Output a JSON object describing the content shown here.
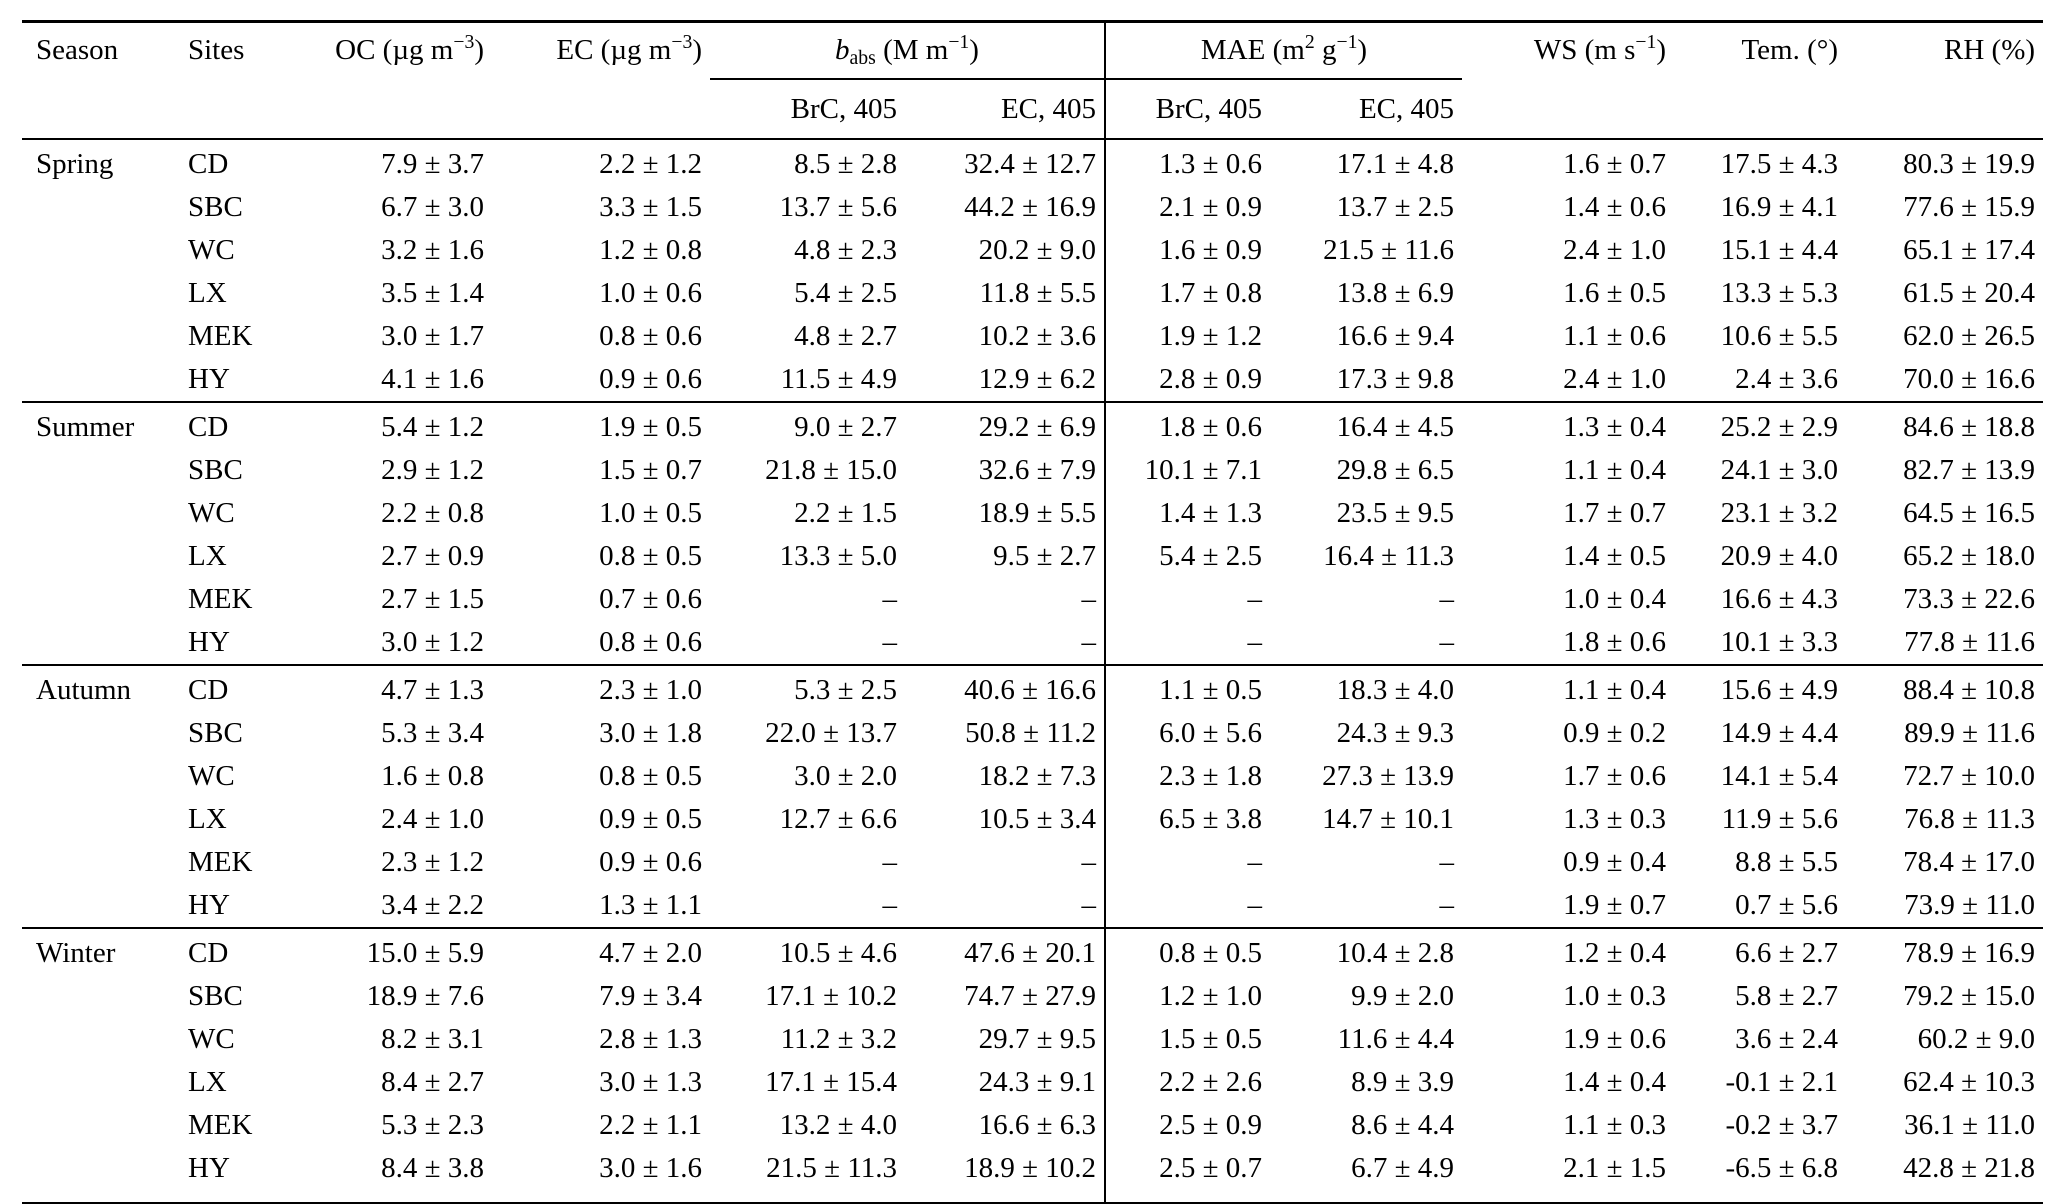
{
  "table": {
    "header": {
      "season": "Season",
      "sites": "Sites",
      "oc": "OC (µg m^−3^)",
      "ec": "EC (µg m^−3^)",
      "babs": "*b*~abs~ (M m^−1^)",
      "mae": "MAE (m^2^ g^−1^)",
      "ws": "WS (m s^−1^)",
      "tem": "Tem. (°)",
      "rh": "RH (%)",
      "babs_sub_brc": "BrC, 405",
      "babs_sub_ec": "EC, 405",
      "mae_sub_brc": "BrC, 405",
      "mae_sub_ec": "EC, 405"
    },
    "groups": [
      {
        "season": "Spring",
        "rows": [
          {
            "site": "CD",
            "values": [
              "7.9 ± 3.7",
              "2.2 ± 1.2",
              "8.5 ± 2.8",
              "32.4 ± 12.7",
              "1.3 ± 0.6",
              "17.1 ± 4.8",
              "1.6 ± 0.7",
              "17.5 ± 4.3",
              "80.3 ± 19.9"
            ]
          },
          {
            "site": "SBC",
            "values": [
              "6.7 ± 3.0",
              "3.3 ± 1.5",
              "13.7 ± 5.6",
              "44.2 ± 16.9",
              "2.1 ± 0.9",
              "13.7 ± 2.5",
              "1.4 ± 0.6",
              "16.9 ± 4.1",
              "77.6 ± 15.9"
            ]
          },
          {
            "site": "WC",
            "values": [
              "3.2 ± 1.6",
              "1.2 ± 0.8",
              "4.8 ± 2.3",
              "20.2 ± 9.0",
              "1.6 ± 0.9",
              "21.5 ± 11.6",
              "2.4 ± 1.0",
              "15.1 ± 4.4",
              "65.1 ± 17.4"
            ]
          },
          {
            "site": "LX",
            "values": [
              "3.5 ± 1.4",
              "1.0 ± 0.6",
              "5.4 ± 2.5",
              "11.8 ± 5.5",
              "1.7 ± 0.8",
              "13.8 ± 6.9",
              "1.6 ± 0.5",
              "13.3 ± 5.3",
              "61.5 ± 20.4"
            ]
          },
          {
            "site": "MEK",
            "values": [
              "3.0 ± 1.7",
              "0.8 ± 0.6",
              "4.8 ± 2.7",
              "10.2 ± 3.6",
              "1.9 ± 1.2",
              "16.6 ± 9.4",
              "1.1 ± 0.6",
              "10.6 ± 5.5",
              "62.0 ± 26.5"
            ]
          },
          {
            "site": "HY",
            "values": [
              "4.1 ± 1.6",
              "0.9 ± 0.6",
              "11.5 ± 4.9",
              "12.9 ± 6.2",
              "2.8 ± 0.9",
              "17.3 ± 9.8",
              "2.4 ± 1.0",
              "2.4 ± 3.6",
              "70.0 ± 16.6"
            ]
          }
        ]
      },
      {
        "season": "Summer",
        "rows": [
          {
            "site": "CD",
            "values": [
              "5.4 ± 1.2",
              "1.9 ± 0.5",
              "9.0 ± 2.7",
              "29.2 ± 6.9",
              "1.8 ± 0.6",
              "16.4 ± 4.5",
              "1.3 ± 0.4",
              "25.2 ± 2.9",
              "84.6 ± 18.8"
            ]
          },
          {
            "site": "SBC",
            "values": [
              "2.9 ± 1.2",
              "1.5 ± 0.7",
              "21.8 ± 15.0",
              "32.6 ± 7.9",
              "10.1 ± 7.1",
              "29.8 ± 6.5",
              "1.1 ± 0.4",
              "24.1 ± 3.0",
              "82.7 ± 13.9"
            ]
          },
          {
            "site": "WC",
            "values": [
              "2.2 ± 0.8",
              "1.0 ± 0.5",
              "2.2 ± 1.5",
              "18.9 ± 5.5",
              "1.4 ± 1.3",
              "23.5 ± 9.5",
              "1.7 ± 0.7",
              "23.1 ± 3.2",
              "64.5 ± 16.5"
            ]
          },
          {
            "site": "LX",
            "values": [
              "2.7 ± 0.9",
              "0.8 ± 0.5",
              "13.3 ± 5.0",
              "9.5 ± 2.7",
              "5.4 ± 2.5",
              "16.4 ± 11.3",
              "1.4 ± 0.5",
              "20.9 ± 4.0",
              "65.2 ± 18.0"
            ]
          },
          {
            "site": "MEK",
            "values": [
              "2.7 ± 1.5",
              "0.7 ± 0.6",
              "–",
              "–",
              "–",
              "–",
              "1.0 ± 0.4",
              "16.6 ± 4.3",
              "73.3 ± 22.6"
            ]
          },
          {
            "site": "HY",
            "values": [
              "3.0 ± 1.2",
              "0.8 ± 0.6",
              "–",
              "–",
              "–",
              "–",
              "1.8 ± 0.6",
              "10.1 ± 3.3",
              "77.8 ± 11.6"
            ]
          }
        ]
      },
      {
        "season": "Autumn",
        "rows": [
          {
            "site": "CD",
            "values": [
              "4.7 ± 1.3",
              "2.3 ± 1.0",
              "5.3 ± 2.5",
              "40.6 ± 16.6",
              "1.1 ± 0.5",
              "18.3 ± 4.0",
              "1.1 ± 0.4",
              "15.6 ± 4.9",
              "88.4 ± 10.8"
            ]
          },
          {
            "site": "SBC",
            "values": [
              "5.3 ± 3.4",
              "3.0 ± 1.8",
              "22.0 ± 13.7",
              "50.8 ± 11.2",
              "6.0 ± 5.6",
              "24.3 ± 9.3",
              "0.9 ± 0.2",
              "14.9 ± 4.4",
              "89.9 ± 11.6"
            ]
          },
          {
            "site": "WC",
            "values": [
              "1.6 ± 0.8",
              "0.8 ± 0.5",
              "3.0 ± 2.0",
              "18.2 ± 7.3",
              "2.3 ± 1.8",
              "27.3 ± 13.9",
              "1.7 ± 0.6",
              "14.1 ± 5.4",
              "72.7 ± 10.0"
            ]
          },
          {
            "site": "LX",
            "values": [
              "2.4 ± 1.0",
              "0.9 ± 0.5",
              "12.7 ± 6.6",
              "10.5 ± 3.4",
              "6.5 ± 3.8",
              "14.7 ± 10.1",
              "1.3 ± 0.3",
              "11.9 ± 5.6",
              "76.8 ± 11.3"
            ]
          },
          {
            "site": "MEK",
            "values": [
              "2.3 ± 1.2",
              "0.9 ± 0.6",
              "–",
              "–",
              "–",
              "–",
              "0.9 ± 0.4",
              "8.8 ± 5.5",
              "78.4 ± 17.0"
            ]
          },
          {
            "site": "HY",
            "values": [
              "3.4 ± 2.2",
              "1.3 ± 1.1",
              "–",
              "–",
              "–",
              "–",
              "1.9 ± 0.7",
              "0.7 ± 5.6",
              "73.9 ± 11.0"
            ]
          }
        ]
      },
      {
        "season": "Winter",
        "rows": [
          {
            "site": "CD",
            "values": [
              "15.0 ± 5.9",
              "4.7 ± 2.0",
              "10.5 ± 4.6",
              "47.6 ± 20.1",
              "0.8 ± 0.5",
              "10.4 ± 2.8",
              "1.2 ± 0.4",
              "6.6 ± 2.7",
              "78.9 ± 16.9"
            ]
          },
          {
            "site": "SBC",
            "values": [
              "18.9 ± 7.6",
              "7.9 ± 3.4",
              "17.1 ± 10.2",
              "74.7 ± 27.9",
              "1.2 ± 1.0",
              "9.9 ± 2.0",
              "1.0 ± 0.3",
              "5.8 ± 2.7",
              "79.2 ± 15.0"
            ]
          },
          {
            "site": "WC",
            "values": [
              "8.2 ± 3.1",
              "2.8 ± 1.3",
              "11.2 ± 3.2",
              "29.7 ± 9.5",
              "1.5 ± 0.5",
              "11.6 ± 4.4",
              "1.9 ± 0.6",
              "3.6 ± 2.4",
              "60.2 ± 9.0"
            ]
          },
          {
            "site": "LX",
            "values": [
              "8.4 ± 2.7",
              "3.0 ± 1.3",
              "17.1 ± 15.4",
              "24.3 ± 9.1",
              "2.2 ± 2.6",
              "8.9 ± 3.9",
              "1.4 ± 0.4",
              "-0.1 ± 2.1",
              "62.4 ± 10.3"
            ]
          },
          {
            "site": "MEK",
            "values": [
              "5.3 ± 2.3",
              "2.2 ± 1.1",
              "13.2 ± 4.0",
              "16.6 ± 6.3",
              "2.5 ± 0.9",
              "8.6 ± 4.4",
              "1.1 ± 0.3",
              "-0.2 ± 3.7",
              "36.1 ± 11.0"
            ]
          },
          {
            "site": "HY",
            "values": [
              "8.4 ± 3.8",
              "3.0 ± 1.6",
              "21.5 ± 11.3",
              "18.9 ± 10.2",
              "2.5 ± 0.7",
              "6.7 ± 4.9",
              "2.1 ± 1.5",
              "-6.5 ± 6.8",
              "42.8 ± 21.8"
            ]
          }
        ]
      }
    ]
  }
}
